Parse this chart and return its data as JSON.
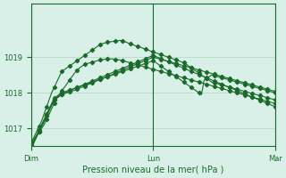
{
  "bg_color": "#d8f0e8",
  "grid_color": "#b0d8c0",
  "line_color": "#1a6b2a",
  "marker_color": "#1a6b2a",
  "xlabel": "Pression niveau de la mer( hPa )",
  "xlabel_color": "#1a6b2a",
  "tick_color": "#1a6b2a",
  "ylim": [
    1016.5,
    1020.5
  ],
  "yticks": [
    1017,
    1018,
    1019
  ],
  "xtick_labels": [
    "Dim",
    "Lun",
    "Mar"
  ],
  "xtick_positions": [
    0,
    48,
    96
  ],
  "vline_positions": [
    0,
    48,
    96
  ],
  "total_points": 97,
  "series": [
    [
      1016.6,
      1016.7,
      1016.8,
      1016.9,
      1017.0,
      1017.1,
      1017.25,
      1017.4,
      1017.55,
      1017.7,
      1017.85,
      1017.95,
      1018.05,
      1018.15,
      1018.25,
      1018.35,
      1018.45,
      1018.55,
      1018.62,
      1018.7,
      1018.75,
      1018.8,
      1018.82,
      1018.84,
      1018.86,
      1018.88,
      1018.9,
      1018.92,
      1018.93,
      1018.94,
      1018.95,
      1018.95,
      1018.95,
      1018.94,
      1018.93,
      1018.92,
      1018.9,
      1018.88,
      1018.86,
      1018.84,
      1018.82,
      1018.8,
      1018.78,
      1018.76,
      1018.74,
      1018.72,
      1018.7,
      1018.68,
      1018.66,
      1018.64,
      1018.62,
      1018.6,
      1018.58,
      1018.56,
      1018.54,
      1018.52,
      1018.5,
      1018.48,
      1018.46,
      1018.44,
      1018.42,
      1018.4,
      1018.38,
      1018.36,
      1018.34,
      1018.32,
      1018.3,
      1018.28,
      1018.26,
      1018.24,
      1018.22,
      1018.2,
      1018.18,
      1018.16,
      1018.14,
      1018.12,
      1018.1,
      1018.08,
      1018.06,
      1018.04,
      1018.02,
      1018.0,
      1017.98,
      1017.96,
      1017.94,
      1017.92,
      1017.9,
      1017.88,
      1017.86,
      1017.84,
      1017.82,
      1017.8,
      1017.78,
      1017.76,
      1017.74,
      1017.72,
      1017.7
    ],
    [
      1016.6,
      1016.75,
      1016.9,
      1017.05,
      1017.2,
      1017.4,
      1017.6,
      1017.8,
      1018.0,
      1018.15,
      1018.3,
      1018.45,
      1018.6,
      1018.65,
      1018.7,
      1018.75,
      1018.8,
      1018.85,
      1018.9,
      1018.95,
      1019.0,
      1019.05,
      1019.1,
      1019.15,
      1019.2,
      1019.25,
      1019.3,
      1019.35,
      1019.38,
      1019.4,
      1019.42,
      1019.43,
      1019.44,
      1019.45,
      1019.46,
      1019.47,
      1019.45,
      1019.43,
      1019.4,
      1019.37,
      1019.35,
      1019.32,
      1019.3,
      1019.28,
      1019.25,
      1019.22,
      1019.2,
      1019.17,
      1019.15,
      1019.12,
      1019.1,
      1019.08,
      1019.05,
      1019.02,
      1019.0,
      1018.97,
      1018.95,
      1018.92,
      1018.9,
      1018.87,
      1018.85,
      1018.8,
      1018.75,
      1018.7,
      1018.65,
      1018.6,
      1018.55,
      1018.5,
      1018.45,
      1018.4,
      1018.35,
      1018.3,
      1018.28,
      1018.26,
      1018.24,
      1018.22,
      1018.2,
      1018.18,
      1018.16,
      1018.14,
      1018.12,
      1018.1,
      1018.08,
      1018.06,
      1018.04,
      1018.02,
      1018.0,
      1017.98,
      1017.96,
      1017.94,
      1017.92,
      1017.9,
      1017.88,
      1017.86,
      1017.84,
      1017.82,
      1017.8
    ],
    [
      1016.5,
      1016.6,
      1016.75,
      1016.9,
      1017.05,
      1017.2,
      1017.35,
      1017.5,
      1017.65,
      1017.8,
      1017.85,
      1017.9,
      1017.95,
      1017.975,
      1018.0,
      1018.025,
      1018.05,
      1018.07,
      1018.1,
      1018.13,
      1018.16,
      1018.19,
      1018.22,
      1018.25,
      1018.28,
      1018.31,
      1018.34,
      1018.37,
      1018.4,
      1018.43,
      1018.46,
      1018.49,
      1018.52,
      1018.55,
      1018.58,
      1018.61,
      1018.64,
      1018.67,
      1018.7,
      1018.73,
      1018.76,
      1018.79,
      1018.82,
      1018.85,
      1018.88,
      1018.91,
      1018.94,
      1018.97,
      1019.0,
      1018.98,
      1018.96,
      1018.94,
      1018.92,
      1018.9,
      1018.88,
      1018.86,
      1018.84,
      1018.82,
      1018.8,
      1018.78,
      1018.76,
      1018.74,
      1018.72,
      1018.7,
      1018.68,
      1018.66,
      1018.64,
      1018.62,
      1018.6,
      1018.58,
      1018.56,
      1018.54,
      1018.52,
      1018.5,
      1018.48,
      1018.46,
      1018.44,
      1018.42,
      1018.4,
      1018.38,
      1018.36,
      1018.34,
      1018.32,
      1018.3,
      1018.28,
      1018.26,
      1018.24,
      1018.22,
      1018.2,
      1018.18,
      1018.16,
      1018.14,
      1018.12,
      1018.1,
      1018.08,
      1018.06,
      1018.04
    ],
    [
      1016.55,
      1016.65,
      1016.8,
      1016.95,
      1017.1,
      1017.25,
      1017.4,
      1017.55,
      1017.7,
      1017.85,
      1017.9,
      1017.95,
      1018.0,
      1018.025,
      1018.05,
      1018.075,
      1018.1,
      1018.125,
      1018.15,
      1018.175,
      1018.2,
      1018.225,
      1018.25,
      1018.275,
      1018.3,
      1018.325,
      1018.35,
      1018.375,
      1018.4,
      1018.425,
      1018.45,
      1018.475,
      1018.5,
      1018.525,
      1018.55,
      1018.575,
      1018.6,
      1018.625,
      1018.65,
      1018.675,
      1018.7,
      1018.725,
      1018.75,
      1018.775,
      1018.8,
      1018.825,
      1018.85,
      1018.875,
      1018.9,
      1018.85,
      1018.8,
      1018.75,
      1018.7,
      1018.65,
      1018.6,
      1018.55,
      1018.5,
      1018.45,
      1018.4,
      1018.35,
      1018.3,
      1018.25,
      1018.2,
      1018.15,
      1018.1,
      1018.05,
      1018.0,
      1017.95,
      1018.35,
      1018.4,
      1018.45,
      1018.5,
      1018.48,
      1018.46,
      1018.44,
      1018.42,
      1018.4,
      1018.38,
      1018.36,
      1018.34,
      1018.32,
      1018.3,
      1018.28,
      1018.26,
      1018.24,
      1018.22,
      1018.2,
      1018.18,
      1018.16,
      1018.14,
      1018.12,
      1018.1,
      1018.08,
      1018.06,
      1018.04,
      1018.02,
      1018.0
    ],
    [
      1016.5,
      1016.6,
      1016.75,
      1016.9,
      1017.05,
      1017.2,
      1017.35,
      1017.5,
      1017.65,
      1017.8,
      1017.85,
      1017.9,
      1017.95,
      1018.0,
      1018.03,
      1018.06,
      1018.09,
      1018.12,
      1018.15,
      1018.18,
      1018.21,
      1018.24,
      1018.27,
      1018.3,
      1018.33,
      1018.36,
      1018.39,
      1018.42,
      1018.45,
      1018.48,
      1018.51,
      1018.54,
      1018.57,
      1018.6,
      1018.63,
      1018.66,
      1018.69,
      1018.72,
      1018.75,
      1018.78,
      1018.81,
      1018.84,
      1018.87,
      1018.9,
      1018.93,
      1018.96,
      1018.99,
      1019.02,
      1019.05,
      1019.02,
      1018.99,
      1018.96,
      1018.93,
      1018.9,
      1018.87,
      1018.84,
      1018.81,
      1018.78,
      1018.75,
      1018.72,
      1018.69,
      1018.66,
      1018.63,
      1018.6,
      1018.57,
      1018.54,
      1018.51,
      1018.48,
      1018.45,
      1018.42,
      1018.39,
      1018.36,
      1018.33,
      1018.3,
      1018.27,
      1018.24,
      1018.21,
      1018.18,
      1018.15,
      1018.12,
      1018.09,
      1018.06,
      1018.03,
      1018.0,
      1017.97,
      1017.94,
      1017.91,
      1017.88,
      1017.85,
      1017.82,
      1017.79,
      1017.76,
      1017.73,
      1017.7,
      1017.67,
      1017.64,
      1017.61
    ]
  ]
}
